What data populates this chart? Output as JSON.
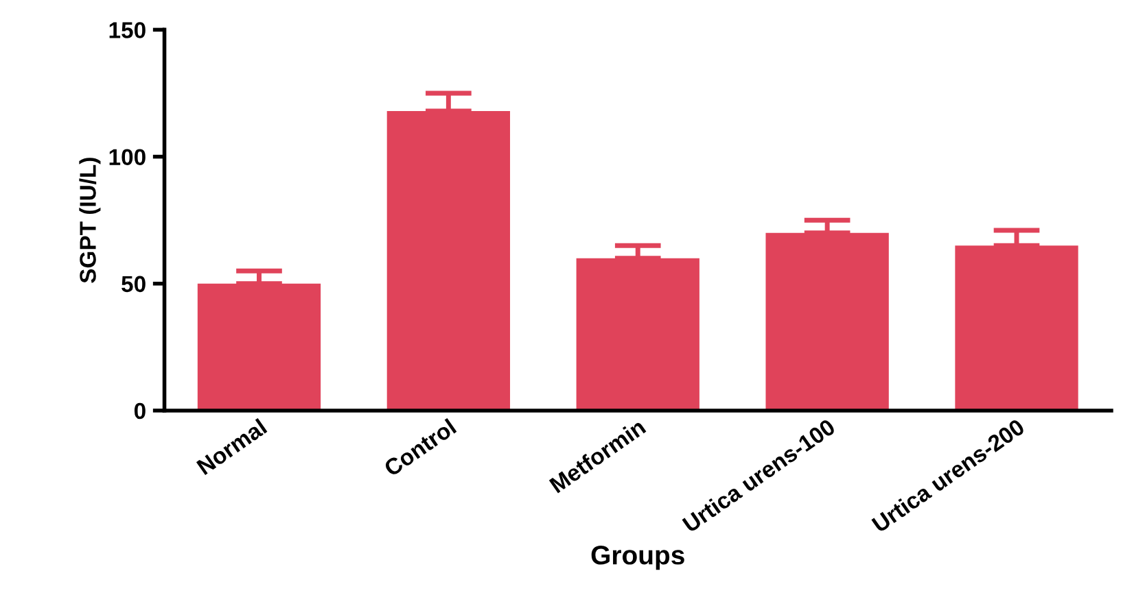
{
  "chart_data": {
    "type": "bar",
    "xlabel": "Groups",
    "ylabel": "SGPT (IU/L)",
    "categories": [
      "Normal",
      "Control",
      "Metformin",
      "Urtica urens-100",
      "Urtica urens-200"
    ],
    "values": [
      50,
      118,
      60,
      70,
      65
    ],
    "errors": [
      [
        50,
        55
      ],
      [
        118,
        125
      ],
      [
        60,
        65
      ],
      [
        70,
        75
      ],
      [
        65,
        71
      ]
    ],
    "color": "#e0435a",
    "ylim": [
      0,
      150
    ],
    "yticks": [
      0,
      50,
      100,
      150
    ],
    "grid": false
  }
}
